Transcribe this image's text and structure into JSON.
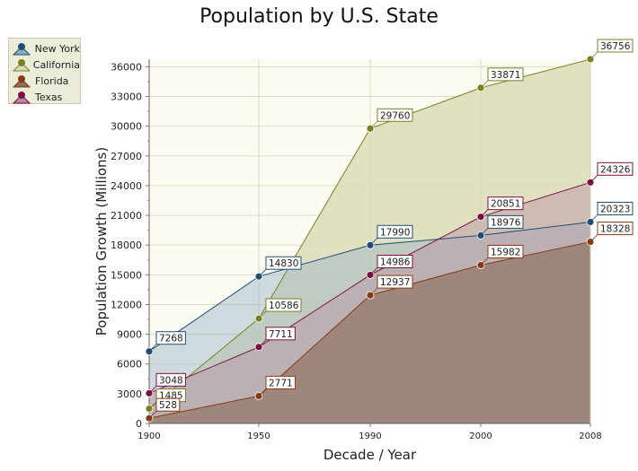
{
  "chart_data": {
    "type": "area",
    "title": "Population by U.S. State",
    "xlabel": "Decade / Year",
    "ylabel": "Population Growth (Millions)",
    "categories": [
      "1900",
      "1950",
      "1990",
      "2000",
      "2008"
    ],
    "ylim": [
      0,
      36756
    ],
    "yticks": [
      0,
      3000,
      6000,
      9000,
      12000,
      15000,
      18000,
      21000,
      24000,
      27000,
      30000,
      33000,
      36000
    ],
    "grid": true,
    "legend_position": "top-left",
    "series": [
      {
        "name": "California",
        "values": [
          1485,
          10586,
          29760,
          33871,
          36756
        ],
        "color": "#7a7f22",
        "fill": "#dcdcb8",
        "fill_opacity": 0.85
      },
      {
        "name": "New York",
        "values": [
          7268,
          14830,
          17990,
          18976,
          20323
        ],
        "color": "#1f4f74",
        "fill": "#8eabc4",
        "fill_opacity": 0.4
      },
      {
        "name": "Texas",
        "values": [
          3048,
          7711,
          14986,
          20851,
          24326
        ],
        "color": "#7a1040",
        "fill": "#b58aa0",
        "fill_opacity": 0.42
      },
      {
        "name": "Florida",
        "values": [
          528,
          2771,
          12937,
          15982,
          18328
        ],
        "color": "#8a3a12",
        "fill": "#8a6a58",
        "fill_opacity": 0.6
      }
    ],
    "legend": [
      "New York",
      "California",
      "Florida",
      "Texas"
    ]
  }
}
